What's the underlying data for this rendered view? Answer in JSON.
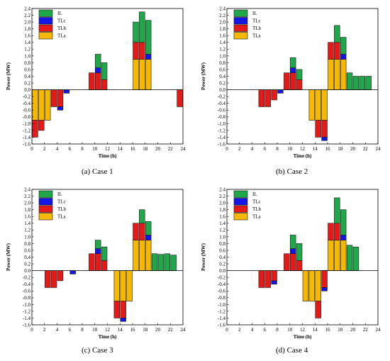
{
  "figure": {
    "captions": [
      "(a) Case 1",
      "(b) Case 2",
      "(c) Case 3",
      "(d) Case 4"
    ]
  },
  "legend_order": [
    "IL",
    "TLc",
    "TLb",
    "TLa"
  ],
  "colors": {
    "IL": "#1fa84a",
    "TLc": "#1515e6",
    "TLb": "#e61919",
    "TLa": "#f7b800"
  },
  "chart_data": [
    {
      "type": "bar",
      "stacked": true,
      "caption": "(a) Case 1",
      "xlabel": "Time (h)",
      "ylabel": "Power (MW)",
      "xlim": [
        0,
        24
      ],
      "ylim": [
        -1.6,
        2.4
      ],
      "xticks": [
        0,
        2,
        4,
        6,
        8,
        10,
        12,
        14,
        16,
        18,
        20,
        22,
        24
      ],
      "yticks": [
        -1.6,
        -1.4,
        -1.2,
        -1.0,
        -0.8,
        -0.6,
        -0.4,
        -0.2,
        0.0,
        0.2,
        0.4,
        0.6,
        0.8,
        1.0,
        1.2,
        1.4,
        1.6,
        1.8,
        2.0,
        2.2,
        2.4
      ],
      "ytick_labels": [
        "-1.6",
        "-1.4",
        "-1.2",
        "-1.0",
        "-0.8",
        "-0.6",
        "-0.4",
        "-0.2",
        "0.0",
        "0.2",
        "0.4",
        "0.6",
        "0.8",
        "1.0",
        "1.2",
        "1.4",
        "1.6",
        "1.8",
        "2.0",
        "2.2",
        "2.4"
      ],
      "legend_position": "top-left",
      "grid": false,
      "bars": [
        {
          "t": 0.5,
          "TLa": -0.9,
          "TLb": -0.5
        },
        {
          "t": 1.5,
          "TLa": -0.9,
          "TLb": -0.3
        },
        {
          "t": 2.5,
          "TLa": -0.9
        },
        {
          "t": 3.5,
          "TLb": -0.5
        },
        {
          "t": 4.5,
          "TLb": -0.5,
          "TLc": -0.1
        },
        {
          "t": 5.5,
          "TLc": -0.1
        },
        {
          "t": 9.5,
          "TLb": 0.5
        },
        {
          "t": 10.5,
          "TLb": 0.5,
          "TLc": 0.15,
          "IL": 0.4
        },
        {
          "t": 11.5,
          "TLb": 0.3,
          "IL": 0.5
        },
        {
          "t": 16.5,
          "TLa": 0.9,
          "TLb": 0.5,
          "IL": 0.6
        },
        {
          "t": 17.5,
          "TLa": 0.9,
          "TLb": 0.5,
          "IL": 0.9
        },
        {
          "t": 18.5,
          "TLa": 0.9,
          "TLc": 0.15,
          "IL": 1.0
        },
        {
          "t": 23.5,
          "TLb": -0.5
        }
      ]
    },
    {
      "type": "bar",
      "stacked": true,
      "caption": "(b) Case 2",
      "xlabel": "Time (h)",
      "ylabel": "Power (MW)",
      "xlim": [
        0,
        24
      ],
      "ylim": [
        -1.6,
        2.4
      ],
      "xticks": [
        0,
        2,
        4,
        6,
        8,
        10,
        12,
        14,
        16,
        18,
        20,
        22,
        24
      ],
      "yticks": [
        -1.6,
        -1.4,
        -1.2,
        -1.0,
        -0.8,
        -0.6,
        -0.4,
        -0.2,
        0.0,
        0.2,
        0.4,
        0.6,
        0.8,
        1.0,
        1.2,
        1.4,
        1.6,
        1.8,
        2.0,
        2.2,
        2.4
      ],
      "ytick_labels": [
        "-1.6",
        "-1.4",
        "-1.2",
        "-1.0",
        "-0.8",
        "-0.6",
        "-0.4",
        "-0.2",
        "0.0",
        "0.2",
        "0.4",
        "0.6",
        "0.8",
        "1.0",
        "1.2",
        "1.4",
        "1.6",
        "1.8",
        "2.0",
        "2.2",
        "2.4"
      ],
      "legend_position": "top-left",
      "grid": false,
      "bars": [
        {
          "t": 5.5,
          "TLb": -0.5
        },
        {
          "t": 6.5,
          "TLb": -0.5
        },
        {
          "t": 7.5,
          "TLb": -0.3
        },
        {
          "t": 8.5,
          "TLc": -0.1
        },
        {
          "t": 9.5,
          "TLb": 0.5
        },
        {
          "t": 10.5,
          "TLb": 0.5,
          "TLc": 0.15,
          "IL": 0.3
        },
        {
          "t": 11.5,
          "TLb": 0.3,
          "IL": 0.3
        },
        {
          "t": 13.5,
          "TLa": -0.9
        },
        {
          "t": 14.5,
          "TLa": -0.9,
          "TLb": -0.5
        },
        {
          "t": 15.5,
          "TLa": -0.9,
          "TLb": -0.5,
          "TLc": -0.1
        },
        {
          "t": 16.5,
          "TLa": 0.9,
          "TLb": 0.5
        },
        {
          "t": 17.5,
          "TLa": 0.9,
          "TLb": 0.5,
          "IL": 0.5
        },
        {
          "t": 18.5,
          "TLa": 0.9,
          "TLc": 0.15,
          "IL": 0.5
        },
        {
          "t": 19.5,
          "IL": 0.5
        },
        {
          "t": 20.5,
          "IL": 0.4
        },
        {
          "t": 21.5,
          "IL": 0.4
        },
        {
          "t": 22.5,
          "IL": 0.4
        }
      ]
    },
    {
      "type": "bar",
      "stacked": true,
      "caption": "(c) Case 3",
      "xlabel": "Time (h)",
      "ylabel": "Power (MW)",
      "xlim": [
        0,
        24
      ],
      "ylim": [
        -1.6,
        2.4
      ],
      "xticks": [
        0,
        2,
        4,
        6,
        8,
        10,
        12,
        14,
        16,
        18,
        20,
        22,
        24
      ],
      "yticks": [
        -1.6,
        -1.4,
        -1.2,
        -1.0,
        -0.8,
        -0.6,
        -0.4,
        -0.2,
        0.0,
        0.2,
        0.4,
        0.6,
        0.8,
        1.0,
        1.2,
        1.4,
        1.6,
        1.8,
        2.0,
        2.2,
        2.4
      ],
      "ytick_labels": [
        "-1.6",
        "-1.4",
        "-1.2",
        "-1.0",
        "-0.8",
        "-0.6",
        "-0.4",
        "-0.2",
        "0.0",
        "0.2",
        "0.4",
        "0.6",
        "0.8",
        "1.0",
        "1.2",
        "1.4",
        "1.6",
        "1.8",
        "2.0",
        "2.2",
        "2.4"
      ],
      "legend_position": "top-left",
      "grid": false,
      "bars": [
        {
          "t": 2.5,
          "TLb": -0.5
        },
        {
          "t": 3.5,
          "TLb": -0.5
        },
        {
          "t": 4.5,
          "TLb": -0.3
        },
        {
          "t": 6.5,
          "TLc": -0.1
        },
        {
          "t": 9.5,
          "TLb": 0.5
        },
        {
          "t": 10.5,
          "TLb": 0.5,
          "TLc": 0.15,
          "IL": 0.25
        },
        {
          "t": 11.5,
          "TLb": 0.3,
          "IL": 0.4
        },
        {
          "t": 13.5,
          "TLa": -0.9,
          "TLb": -0.5
        },
        {
          "t": 14.5,
          "TLa": -0.9,
          "TLb": -0.5,
          "TLc": -0.1
        },
        {
          "t": 15.5,
          "TLa": -0.9
        },
        {
          "t": 16.5,
          "TLa": 0.9,
          "TLb": 0.5
        },
        {
          "t": 17.5,
          "TLa": 0.9,
          "TLb": 0.5,
          "IL": 0.4
        },
        {
          "t": 18.5,
          "TLa": 0.9,
          "TLc": 0.15,
          "IL": 0.4
        },
        {
          "t": 19.5,
          "IL": 0.5
        },
        {
          "t": 20.5,
          "IL": 0.48
        },
        {
          "t": 21.5,
          "IL": 0.5
        },
        {
          "t": 22.5,
          "IL": 0.46
        }
      ]
    },
    {
      "type": "bar",
      "stacked": true,
      "caption": "(d) Case 4",
      "xlabel": "Time (h)",
      "ylabel": "Power (MW)",
      "xlim": [
        0,
        24
      ],
      "ylim": [
        -1.6,
        2.4
      ],
      "xticks": [
        0,
        2,
        4,
        6,
        8,
        10,
        12,
        14,
        16,
        18,
        20,
        22,
        24
      ],
      "yticks": [
        -1.6,
        -1.4,
        -1.2,
        -1.0,
        -0.8,
        -0.6,
        -0.4,
        -0.2,
        0.0,
        0.2,
        0.4,
        0.6,
        0.8,
        1.0,
        1.2,
        1.4,
        1.6,
        1.8,
        2.0,
        2.2,
        2.4
      ],
      "ytick_labels": [
        "-1.6",
        "-1.4",
        "-1.2",
        "-1.0",
        "-0.8",
        "-0.6",
        "-0.4",
        "-0.2",
        "0.0",
        "0.2",
        "0.4",
        "0.6",
        "0.8",
        "1.0",
        "1.2",
        "1.4",
        "1.6",
        "1.8",
        "2.0",
        "2.2",
        "2.4"
      ],
      "legend_position": "top-left",
      "grid": false,
      "bars": [
        {
          "t": 5.5,
          "TLb": -0.5
        },
        {
          "t": 6.5,
          "TLb": -0.5
        },
        {
          "t": 7.5,
          "TLb": -0.3,
          "TLc": -0.1
        },
        {
          "t": 9.5,
          "TLb": 0.5
        },
        {
          "t": 10.5,
          "TLb": 0.5,
          "TLc": 0.15,
          "IL": 0.4
        },
        {
          "t": 11.5,
          "TLb": 0.3,
          "IL": 0.5
        },
        {
          "t": 12.5,
          "TLa": -0.9
        },
        {
          "t": 13.5,
          "TLa": -0.9
        },
        {
          "t": 14.5,
          "TLa": -0.9,
          "TLb": -0.5
        },
        {
          "t": 15.5,
          "TLb": -0.5,
          "TLc": -0.1
        },
        {
          "t": 16.5,
          "TLa": 0.9,
          "TLb": 0.5
        },
        {
          "t": 17.5,
          "TLa": 0.9,
          "TLb": 0.5,
          "IL": 0.75
        },
        {
          "t": 18.5,
          "TLa": 0.9,
          "TLc": 0.15,
          "IL": 0.75
        },
        {
          "t": 19.5,
          "IL": 0.75
        },
        {
          "t": 20.5,
          "IL": 0.7
        }
      ]
    }
  ]
}
